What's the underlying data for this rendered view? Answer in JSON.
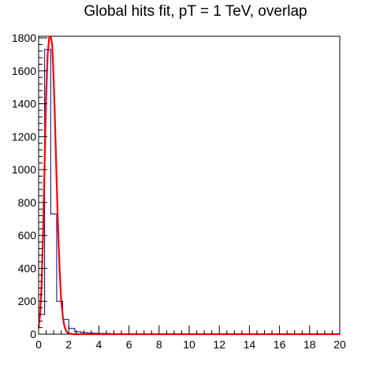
{
  "chart_data": {
    "type": "bar",
    "title": "Global hits fit, pT = 1 TeV, overlap",
    "xlabel": "",
    "ylabel": "",
    "xlim": [
      0,
      20
    ],
    "ylim": [
      0,
      1810
    ],
    "x_ticks": [
      0,
      2,
      4,
      6,
      8,
      10,
      12,
      14,
      16,
      18,
      20
    ],
    "y_ticks": [
      0,
      200,
      400,
      600,
      800,
      1000,
      1200,
      1400,
      1600,
      1800
    ],
    "grid": false,
    "legend": "none",
    "histogram": {
      "name": "",
      "color": "#000080",
      "bin_width": 0.4,
      "bin_edges_start": 0,
      "values": [
        120,
        1730,
        730,
        200,
        90,
        35,
        15,
        10,
        8,
        6,
        5,
        4,
        3,
        3,
        2,
        2,
        2,
        2,
        2,
        1,
        1,
        1,
        1,
        1,
        1,
        1,
        1,
        1,
        1,
        1,
        1,
        1,
        1,
        1,
        1,
        1,
        1,
        1,
        1,
        1,
        1,
        1,
        1,
        1,
        1,
        1,
        1,
        1,
        1,
        1
      ]
    },
    "fit": {
      "name": "",
      "color": "#ff0000",
      "peak_x": 0.85,
      "peak_y": 1810,
      "x": [
        0.0,
        0.1,
        0.2,
        0.3,
        0.4,
        0.5,
        0.6,
        0.7,
        0.8,
        0.9,
        1.0,
        1.1,
        1.2,
        1.3,
        1.4,
        1.5,
        1.6,
        1.7,
        1.8,
        1.9,
        2.0,
        2.2,
        2.4,
        2.6,
        3.0,
        4.0,
        6.0,
        10.0,
        15.0,
        20.0
      ],
      "y": [
        40,
        120,
        300,
        620,
        1050,
        1450,
        1700,
        1800,
        1810,
        1760,
        1550,
        1250,
        920,
        620,
        380,
        210,
        110,
        55,
        25,
        10,
        5,
        1,
        0,
        0,
        0,
        0,
        0,
        0,
        0,
        0
      ]
    }
  }
}
